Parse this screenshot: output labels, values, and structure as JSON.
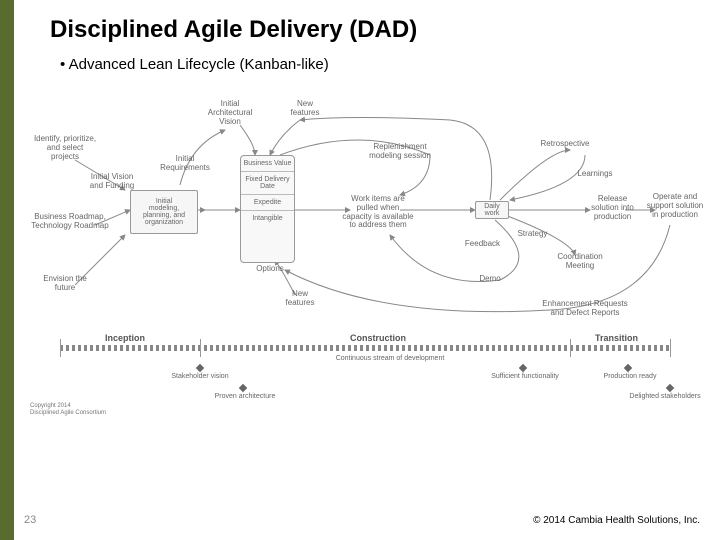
{
  "title": "Disciplined Agile Delivery (DAD)",
  "subtitle": "• Advanced Lean Lifecycle (Kanban-like)",
  "footer": {
    "page": "23",
    "copyright": "© 2014 Cambia Health Solutions, Inc."
  },
  "diagram": {
    "copyright": "Copyright 2014\nDisciplined Agile Consortium",
    "labels": {
      "identify": "Identify, prioritize,\nand select\nprojects",
      "initial_vision": "Initial Vision\nand Funding",
      "roadmap": "Business Roadmap,\nTechnology Roadmap",
      "envision": "Envision the\nfuture",
      "initial_modeling": "Initial\nmodeling,\nplanning, and\norganization",
      "initial_reqs": "Initial\nRequirements",
      "initial_arch": "Initial\nArchitectural\nVision",
      "new_features_top": "New\nfeatures",
      "new_features_bot": "New\nfeatures",
      "replenishment": "Replenishment\nmodeling session",
      "work_items": "Work items are\npulled when\ncapacity is available\nto address them",
      "daily_work": "Daily work",
      "feedback": "Feedback",
      "strategy": "Strategy",
      "demo": "Demo",
      "retrospective": "Retrospective",
      "learnings": "Learnings",
      "coord": "Coordination\nMeeting",
      "release": "Release\nsolution into\nproduction",
      "operate": "Operate and\nsupport solution\nin production",
      "enhancement": "Enhancement Requests\nand Defect Reports",
      "options": "Options"
    },
    "pool": {
      "items": [
        "Business Value",
        "Fixed Delivery Date",
        "Expedite",
        "Intangible"
      ],
      "colors": {
        "border": "#999999",
        "fill": "#f6f6f6"
      }
    },
    "phases": {
      "inception": "Inception",
      "construction": "Construction",
      "transition": "Transition",
      "continuous": "Continuous stream of development",
      "milestones": {
        "stakeholder": "Stakeholder vision",
        "proven": "Proven architecture",
        "sufficient": "Sufficient functionality",
        "production": "Production ready",
        "delighted": "Delighted stakeholders"
      }
    },
    "style": {
      "text_color": "#666666",
      "line_color": "#888888",
      "fontsize_small": 7,
      "fontsize_label": 8,
      "fontsize_phase": 9
    }
  }
}
